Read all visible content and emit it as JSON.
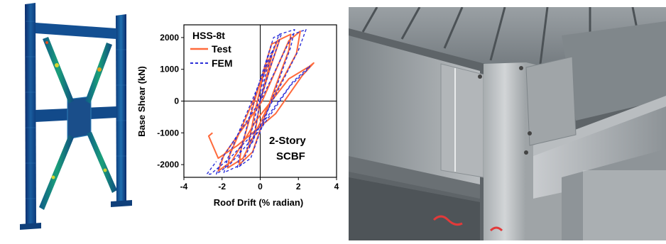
{
  "figure": {
    "fem_model": {
      "description_icon": "fem-frame-contour-icon"
    },
    "photo": {
      "description_icon": "steel-beam-connection-photo-icon"
    }
  },
  "chart_data": {
    "type": "line",
    "title": "HSS-8t",
    "annotation_line1": "2-Story",
    "annotation_line2": "SCBF",
    "xlabel": "Roof Drift (% radian)",
    "ylabel": "Base Shear (kN)",
    "xlim": [
      -4,
      4
    ],
    "ylim": [
      -2400,
      2400
    ],
    "xticks": [
      -4,
      -2,
      0,
      2,
      4
    ],
    "yticks": [
      -2000,
      -1000,
      0,
      1000,
      2000
    ],
    "legend_position": "top-left",
    "grid": false,
    "series": [
      {
        "name": "Test",
        "color": "#ff6a3c",
        "style": "solid",
        "x": [
          0,
          0.3,
          0.6,
          0.3,
          -0.3,
          -0.6,
          -0.3,
          0,
          0.5,
          1.0,
          0.6,
          -0.2,
          -1.0,
          -1.1,
          -0.4,
          0.4,
          1.5,
          1.6,
          0.9,
          -0.3,
          -1.6,
          -1.7,
          -0.9,
          0.3,
          1.9,
          2.1,
          1.5,
          0.1,
          -1.9,
          -2.2,
          -1.5,
          -0.2,
          1.5,
          2.6,
          2.8,
          2.2,
          0.8,
          -1.2,
          -2.2,
          -2.7,
          -2.5
        ],
        "y": [
          0,
          700,
          1400,
          1200,
          -400,
          -1300,
          -1100,
          0,
          1000,
          1900,
          1800,
          200,
          -1500,
          -2000,
          -1600,
          -200,
          1600,
          2100,
          1900,
          100,
          -1700,
          -2100,
          -1800,
          -300,
          1500,
          2200,
          1900,
          0,
          -1700,
          -2200,
          -1900,
          -600,
          700,
          1100,
          1200,
          800,
          -400,
          -1400,
          -1800,
          -1100,
          -1000
        ]
      },
      {
        "name": "FEM",
        "color": "#2b2fd8",
        "style": "dashed",
        "x": [
          0,
          0.3,
          0.7,
          0.4,
          -0.3,
          -0.7,
          -0.4,
          0,
          0.6,
          1.1,
          0.7,
          -0.2,
          -1.1,
          -1.2,
          -0.5,
          0.4,
          1.6,
          1.8,
          1.0,
          -0.3,
          -1.7,
          -1.9,
          -1.0,
          0.3,
          2.0,
          2.4,
          1.7,
          0.1,
          -2.0,
          -2.3,
          -1.6,
          0.0,
          1.6,
          2.5,
          2.6,
          1.7,
          0.0,
          -1.6,
          -2.6,
          -2.8,
          -2.3
        ],
        "y": [
          0,
          900,
          1600,
          1400,
          -600,
          -1500,
          -1300,
          0,
          1200,
          2100,
          2000,
          300,
          -1700,
          -2100,
          -1800,
          -300,
          1700,
          2250,
          2100,
          200,
          -1800,
          -2250,
          -2000,
          -400,
          1600,
          2250,
          2100,
          100,
          -1800,
          -2300,
          -2000,
          -900,
          500,
          1000,
          1100,
          600,
          -800,
          -1800,
          -2300,
          -2300,
          -1900
        ]
      }
    ]
  }
}
